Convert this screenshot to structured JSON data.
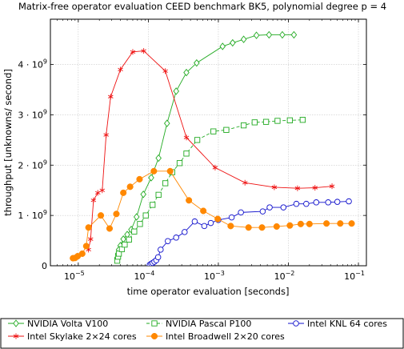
{
  "chart_data": {
    "type": "line",
    "title": "Matrix-free operator evaluation CEED benchmark BK5, polynomial degree p = 4",
    "xlabel": "time operator evaluation [seconds]",
    "ylabel": "throughput [unknowns/ second]",
    "x_scale": "log",
    "xlim": [
      4e-06,
      0.13
    ],
    "ylim": [
      0,
      4900000000.0
    ],
    "x_ticks": [
      {
        "value": 1e-05,
        "base": "10",
        "exp": "−5"
      },
      {
        "value": 0.0001,
        "base": "10",
        "exp": "−4"
      },
      {
        "value": 0.001,
        "base": "10",
        "exp": "−3"
      },
      {
        "value": 0.01,
        "base": "10",
        "exp": "−2"
      },
      {
        "value": 0.1,
        "base": "10",
        "exp": "−1"
      }
    ],
    "y_ticks": [
      {
        "value": 0,
        "label": "0",
        "exp": ""
      },
      {
        "value": 1000000000.0,
        "label": "1 · 10",
        "exp": "9"
      },
      {
        "value": 2000000000.0,
        "label": "2 · 10",
        "exp": "9"
      },
      {
        "value": 3000000000.0,
        "label": "3 · 10",
        "exp": "9"
      },
      {
        "value": 4000000000.0,
        "label": "4 · 10",
        "exp": "9"
      }
    ],
    "grid": true,
    "legend_position": "bottom",
    "series": [
      {
        "name": "NVIDIA Volta V100",
        "color": "#22aa22",
        "marker": "diamond",
        "dash": "solid",
        "x": [
          3.6e-05,
          3.7e-05,
          3.8e-05,
          4e-05,
          4.4e-05,
          5e-05,
          5.7e-05,
          6.8e-05,
          8.5e-05,
          0.00011,
          0.00014,
          0.000185,
          0.00025,
          0.00035,
          0.00049,
          0.00115,
          0.0016,
          0.0023,
          0.0035,
          0.0053,
          0.0082,
          0.012
        ],
        "y": [
          160000000.0,
          240000000.0,
          320000000.0,
          400000000.0,
          530000000.0,
          620000000.0,
          720000000.0,
          970000000.0,
          1420000000.0,
          1750000000.0,
          2140000000.0,
          2830000000.0,
          3470000000.0,
          3840000000.0,
          4030000000.0,
          4360000000.0,
          4430000000.0,
          4500000000.0,
          4580000000.0,
          4590000000.0,
          4590000000.0,
          4590000000.0
        ]
      },
      {
        "name": "NVIDIA Pascal P100",
        "color": "#22aa22",
        "marker": "square",
        "dash": "dashed",
        "x": [
          3.6e-05,
          3.7e-05,
          3.8e-05,
          4.2e-05,
          4.6e-05,
          5.3e-05,
          6.3e-05,
          7.6e-05,
          9.2e-05,
          0.000115,
          0.00014,
          0.000175,
          0.00022,
          0.00028,
          0.00035,
          0.0005,
          0.00085,
          0.0013,
          0.0023,
          0.0033,
          0.0048,
          0.007,
          0.0105,
          0.016
        ],
        "y": [
          100000000.0,
          180000000.0,
          240000000.0,
          330000000.0,
          420000000.0,
          520000000.0,
          680000000.0,
          830000000.0,
          1000000000.0,
          1210000000.0,
          1410000000.0,
          1640000000.0,
          1860000000.0,
          2040000000.0,
          2230000000.0,
          2500000000.0,
          2670000000.0,
          2700000000.0,
          2790000000.0,
          2850000000.0,
          2860000000.0,
          2880000000.0,
          2890000000.0,
          2900000000.0
        ]
      },
      {
        "name": "Intel KNL 64 cores",
        "color": "#1111cc",
        "marker": "circle",
        "dash": "solid",
        "x": [
          0.000105,
          0.00011,
          0.000115,
          0.000122,
          0.00013,
          0.000138,
          0.00015,
          0.00019,
          0.00025,
          0.00033,
          0.00046,
          0.00063,
          0.00078,
          0.001,
          0.00155,
          0.0021,
          0.0043,
          0.0054,
          0.0085,
          0.013,
          0.018,
          0.025,
          0.037,
          0.05,
          0.073
        ],
        "y": [
          20000000.0,
          40000000.0,
          55000000.0,
          80000000.0,
          110000000.0,
          170000000.0,
          320000000.0,
          490000000.0,
          560000000.0,
          670000000.0,
          880000000.0,
          790000000.0,
          850000000.0,
          910000000.0,
          960000000.0,
          1060000000.0,
          1080000000.0,
          1160000000.0,
          1160000000.0,
          1230000000.0,
          1230000000.0,
          1260000000.0,
          1260000000.0,
          1270000000.0,
          1280000000.0
        ]
      },
      {
        "name": "Intel Skylake 2×24 cores",
        "color": "#ee1111",
        "marker": "star",
        "dash": "solid",
        "x": [
          1.4e-05,
          1.5e-05,
          1.65e-05,
          1.9e-05,
          2.2e-05,
          2.5e-05,
          2.9e-05,
          4e-05,
          6e-05,
          8.6e-05,
          0.000175,
          0.00035,
          0.0009,
          0.0024,
          0.0063,
          0.0135,
          0.024,
          0.042
        ],
        "y": [
          320000000.0,
          530000000.0,
          1300000000.0,
          1450000000.0,
          1500000000.0,
          2600000000.0,
          3360000000.0,
          3900000000.0,
          4250000000.0,
          4270000000.0,
          3870000000.0,
          2550000000.0,
          1950000000.0,
          1650000000.0,
          1560000000.0,
          1540000000.0,
          1550000000.0,
          1580000000.0
        ]
      },
      {
        "name": "Intel Broadwell 2×20 cores",
        "color": "#ff8800",
        "marker": "disc",
        "dash": "solid",
        "x": [
          8.4e-06,
          9e-06,
          9.8e-06,
          1.14e-05,
          1.3e-05,
          1.4e-05,
          2.1e-05,
          2.8e-05,
          3.5e-05,
          4.4e-05,
          5.5e-05,
          7.5e-05,
          0.00012,
          0.000205,
          0.00038,
          0.00061,
          0.00098,
          0.0015,
          0.0027,
          0.0042,
          0.0068,
          0.0105,
          0.015,
          0.02,
          0.035,
          0.055,
          0.08
        ],
        "y": [
          150000000.0,
          155000000.0,
          190000000.0,
          240000000.0,
          390000000.0,
          760000000.0,
          1000000000.0,
          740000000.0,
          1030000000.0,
          1450000000.0,
          1570000000.0,
          1720000000.0,
          1880000000.0,
          1880000000.0,
          1300000000.0,
          1090000000.0,
          930000000.0,
          790000000.0,
          760000000.0,
          760000000.0,
          780000000.0,
          800000000.0,
          830000000.0,
          830000000.0,
          840000000.0,
          840000000.0,
          840000000.0
        ]
      }
    ]
  }
}
